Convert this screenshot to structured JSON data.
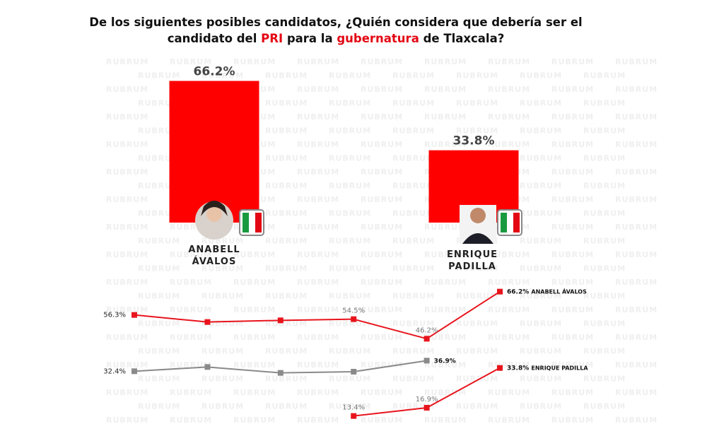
{
  "watermark": "RUBRUM",
  "chart_data": [
    {
      "type": "bar",
      "title_parts": [
        {
          "text": "De los siguientes posibles candidatos, ¿Quién considera que debería ser el candidato del ",
          "color": "#111111"
        },
        {
          "text": "PRI",
          "color": "#e30613"
        },
        {
          "text": " para la ",
          "color": "#111111"
        },
        {
          "text": "gubernatura",
          "color": "#e30613"
        },
        {
          "text": " de Tlaxcala?",
          "color": "#111111"
        }
      ],
      "categories": [
        "ANABELL ÁVALOS",
        "ENRIQUE PADILLA"
      ],
      "values": [
        66.2,
        33.8
      ],
      "value_labels": [
        "66.2%",
        "33.8%"
      ],
      "color": "#ff0000",
      "ylim": [
        0,
        70
      ]
    },
    {
      "type": "line",
      "categories": [
        null,
        null,
        null,
        null,
        null,
        null
      ],
      "ylim": [
        10,
        70
      ],
      "series": [
        {
          "name": "ANABELL ÁVALOS",
          "color": "#e8141c",
          "values": [
            56.3,
            53.3,
            54.0,
            54.5,
            46.2,
            66.2
          ],
          "value_labels": [
            "56.3%",
            null,
            null,
            "54.5%",
            "46.2%",
            "66.2%"
          ]
        },
        {
          "color": "#8a8a8a",
          "values": [
            32.4,
            34.2,
            31.7,
            32.2,
            36.9,
            null
          ],
          "value_labels": [
            "32.4%",
            null,
            null,
            null,
            "36.9%",
            null
          ]
        },
        {
          "name": "ENRIQUE PADILLA",
          "color": "#e8141c",
          "values": [
            null,
            null,
            null,
            13.4,
            16.9,
            33.8
          ],
          "value_labels": [
            null,
            null,
            null,
            "13.4%",
            "16.9%",
            "33.8%"
          ]
        }
      ]
    }
  ]
}
